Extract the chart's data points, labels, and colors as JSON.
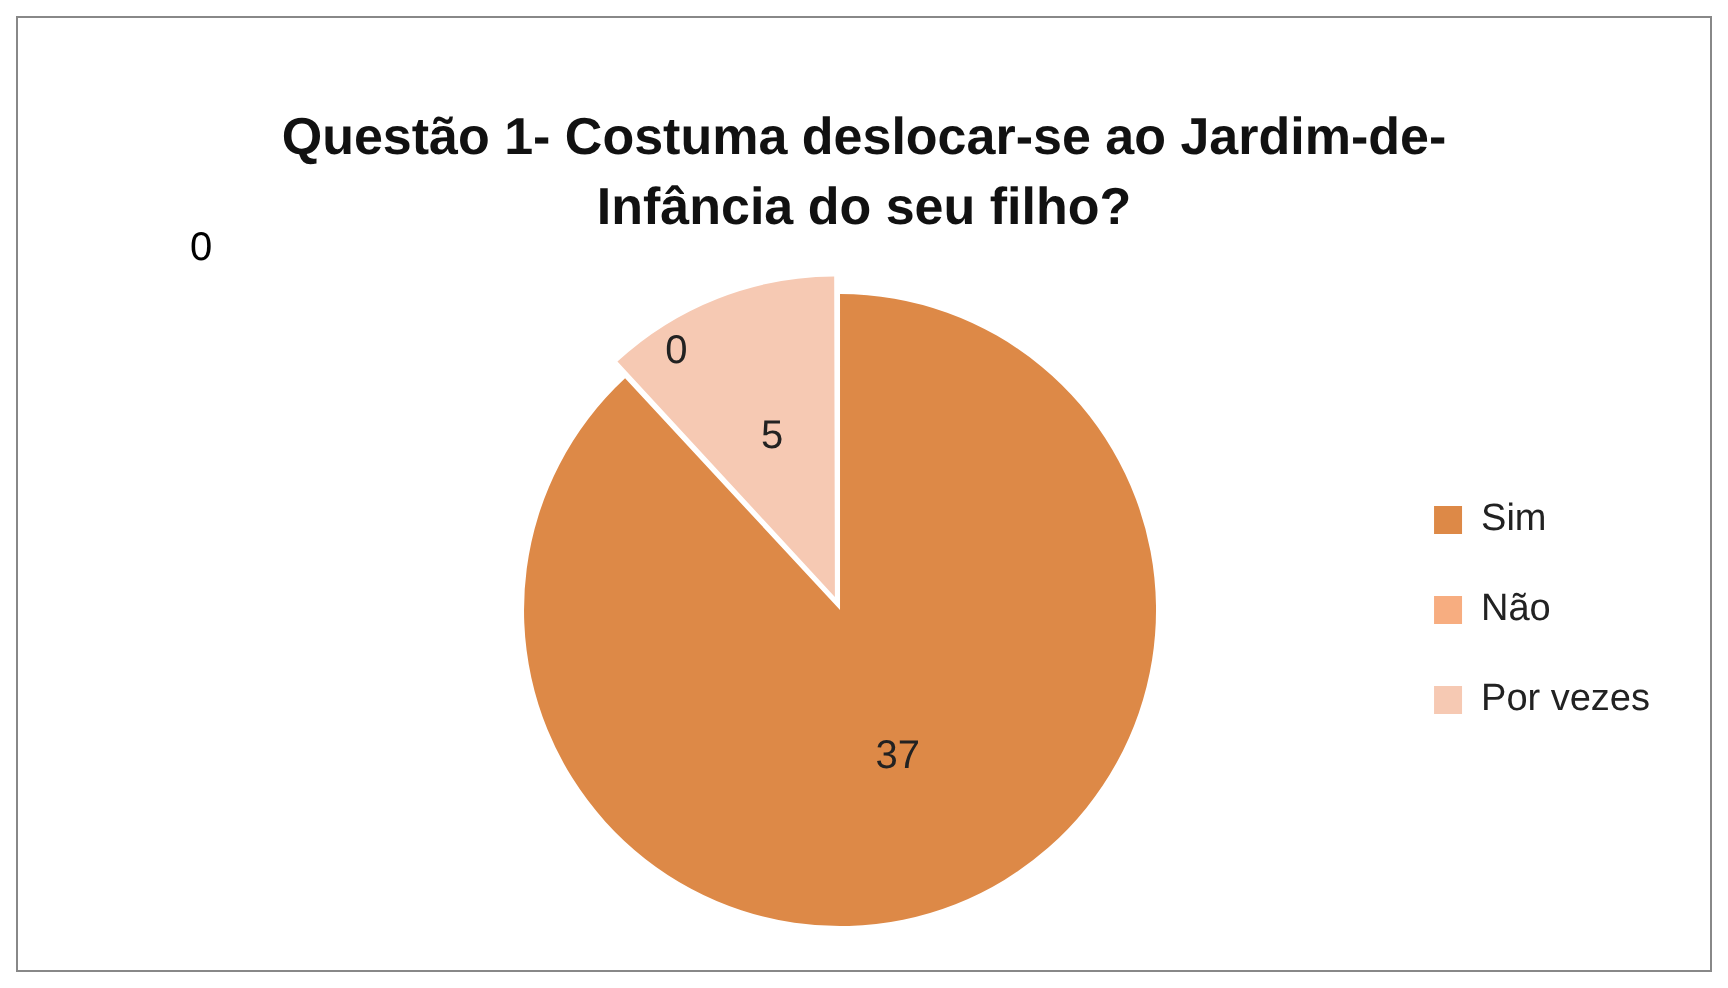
{
  "chart_data": {
    "type": "pie",
    "title": "Questão 1- Costuma deslocar-se ao Jardim-de-Infância do seu filho?",
    "categories": [
      "Sim",
      "Não",
      "Por vezes"
    ],
    "values": [
      37,
      0,
      5
    ],
    "colors": [
      "#dd8947",
      "#f7ad80",
      "#f6c9b3"
    ],
    "data_labels": true,
    "legend": "right",
    "annotations": [
      "0"
    ]
  }
}
